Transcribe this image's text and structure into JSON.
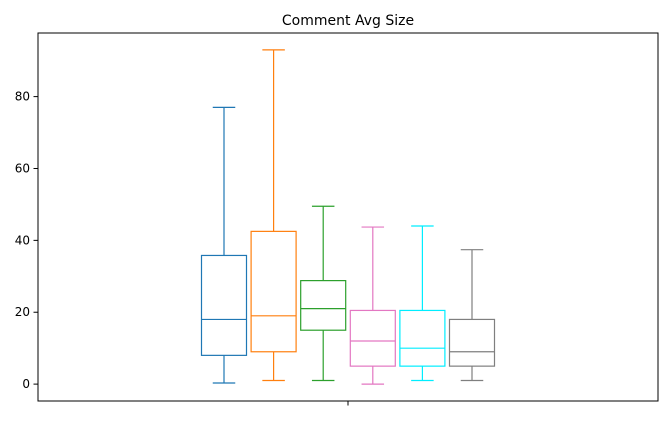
{
  "chart_data": {
    "type": "box",
    "title": "Comment Avg Size",
    "xlabel": "",
    "ylabel": "",
    "ylim": [
      -4.7,
      97.7
    ],
    "yticks": [
      0,
      20,
      40,
      60,
      80
    ],
    "ytick_labels": [
      "0",
      "20",
      "40",
      "60",
      "80"
    ],
    "grid": false,
    "legend": "none",
    "boxes": [
      {
        "color": "#1f77b4",
        "whisker_low": 0.3,
        "q1": 8.0,
        "median": 18.0,
        "q3": 35.8,
        "whisker_high": 77.0
      },
      {
        "color": "#ff7f0e",
        "whisker_low": 1.0,
        "q1": 9.0,
        "median": 19.0,
        "q3": 42.5,
        "whisker_high": 93.0
      },
      {
        "color": "#2ca02c",
        "whisker_low": 1.0,
        "q1": 15.0,
        "median": 21.0,
        "q3": 28.8,
        "whisker_high": 49.5
      },
      {
        "color": "#e377c2",
        "whisker_low": 0.0,
        "q1": 5.0,
        "median": 12.0,
        "q3": 20.5,
        "whisker_high": 43.7
      },
      {
        "color": "#00eeff",
        "whisker_low": 1.0,
        "q1": 5.0,
        "median": 10.0,
        "q3": 20.5,
        "whisker_high": 44.0
      },
      {
        "color": "#7f7f7f",
        "whisker_low": 1.0,
        "q1": 5.0,
        "median": 9.0,
        "q3": 18.0,
        "whisker_high": 37.4
      }
    ]
  }
}
